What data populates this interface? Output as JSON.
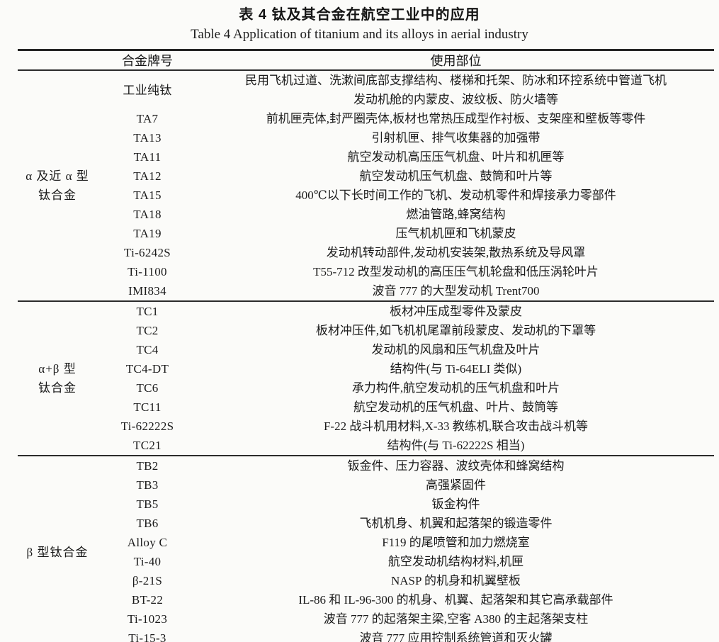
{
  "page": {
    "title_zh": "表 4  钛及其合金在航空工业中的应用",
    "title_en": "Table 4  Application of titanium and its alloys in aerial industry"
  },
  "table": {
    "headers": {
      "alloy": "合金牌号",
      "usage": "使用部位"
    },
    "groups": [
      {
        "label_lines": [
          "α 及近 α 型",
          "钛合金"
        ],
        "rows": [
          {
            "alloy": "工业纯钛",
            "usage_lines": [
              "民用飞机过道、洗漱间底部支撑结构、楼梯和托架、防冰和环控系统中管道飞机",
              "发动机舱的内蒙皮、波纹板、防火墙等"
            ]
          },
          {
            "alloy": "TA7",
            "usage_lines": [
              "前机匣壳体,封严圈壳体,板材也常热压成型作衬板、支架座和壁板等零件"
            ]
          },
          {
            "alloy": "TA13",
            "usage_lines": [
              "引射机匣、排气收集器的加强带"
            ]
          },
          {
            "alloy": "TA11",
            "usage_lines": [
              "航空发动机高压压气机盘、叶片和机匣等"
            ]
          },
          {
            "alloy": "TA12",
            "usage_lines": [
              "航空发动机压气机盘、鼓筒和叶片等"
            ]
          },
          {
            "alloy": "TA15",
            "usage_lines": [
              "400℃以下长时间工作的飞机、发动机零件和焊接承力零部件"
            ]
          },
          {
            "alloy": "TA18",
            "usage_lines": [
              "燃油管路,蜂窝结构"
            ]
          },
          {
            "alloy": "TA19",
            "usage_lines": [
              "压气机机匣和飞机蒙皮"
            ]
          },
          {
            "alloy": "Ti-6242S",
            "usage_lines": [
              "发动机转动部件,发动机安装架,散热系统及导风罩"
            ]
          },
          {
            "alloy": "Ti-1100",
            "usage_lines": [
              "T55-712 改型发动机的高压压气机轮盘和低压涡轮叶片"
            ]
          },
          {
            "alloy": "IMI834",
            "usage_lines": [
              "波音 777 的大型发动机 Trent700"
            ]
          }
        ]
      },
      {
        "label_lines": [
          "α+β 型",
          "钛合金"
        ],
        "rows": [
          {
            "alloy": "TC1",
            "usage_lines": [
              "板材冲压成型零件及蒙皮"
            ]
          },
          {
            "alloy": "TC2",
            "usage_lines": [
              "板材冲压件,如飞机机尾罩前段蒙皮、发动机的下罩等"
            ]
          },
          {
            "alloy": "TC4",
            "usage_lines": [
              "发动机的风扇和压气机盘及叶片"
            ]
          },
          {
            "alloy": "TC4-DT",
            "usage_lines": [
              "结构件(与 Ti-64ELI 类似)"
            ]
          },
          {
            "alloy": "TC6",
            "usage_lines": [
              "承力构件,航空发动机的压气机盘和叶片"
            ]
          },
          {
            "alloy": "TC11",
            "usage_lines": [
              "航空发动机的压气机盘、叶片、鼓筒等"
            ]
          },
          {
            "alloy": "Ti-62222S",
            "usage_lines": [
              "F-22 战斗机用材料,X-33 教练机,联合攻击战斗机等"
            ]
          },
          {
            "alloy": "TC21",
            "usage_lines": [
              "结构件(与 Ti-62222S 相当)"
            ]
          }
        ]
      },
      {
        "label_lines": [
          "β 型钛合金"
        ],
        "rows": [
          {
            "alloy": "TB2",
            "usage_lines": [
              "钣金件、压力容器、波纹壳体和蜂窝结构"
            ]
          },
          {
            "alloy": "TB3",
            "usage_lines": [
              "高强紧固件"
            ]
          },
          {
            "alloy": "TB5",
            "usage_lines": [
              "钣金构件"
            ]
          },
          {
            "alloy": "TB6",
            "usage_lines": [
              "飞机机身、机翼和起落架的锻造零件"
            ]
          },
          {
            "alloy": "Alloy C",
            "usage_lines": [
              "F119 的尾喷管和加力燃烧室"
            ]
          },
          {
            "alloy": "Ti-40",
            "usage_lines": [
              "航空发动机结构材料,机匣"
            ]
          },
          {
            "alloy": "β-21S",
            "usage_lines": [
              "NASP 的机身和机翼壁板"
            ]
          },
          {
            "alloy": "BT-22",
            "usage_lines": [
              "IL-86 和 IL-96-300 的机身、机翼、起落架和其它高承载部件"
            ]
          },
          {
            "alloy": "Ti-1023",
            "usage_lines": [
              "波音 777 的起落架主梁,空客 A380 的主起落架支柱"
            ]
          },
          {
            "alloy": "Ti-15-3",
            "usage_lines": [
              "波音 777 应用控制系统管道和灭火罐"
            ]
          }
        ]
      }
    ]
  }
}
